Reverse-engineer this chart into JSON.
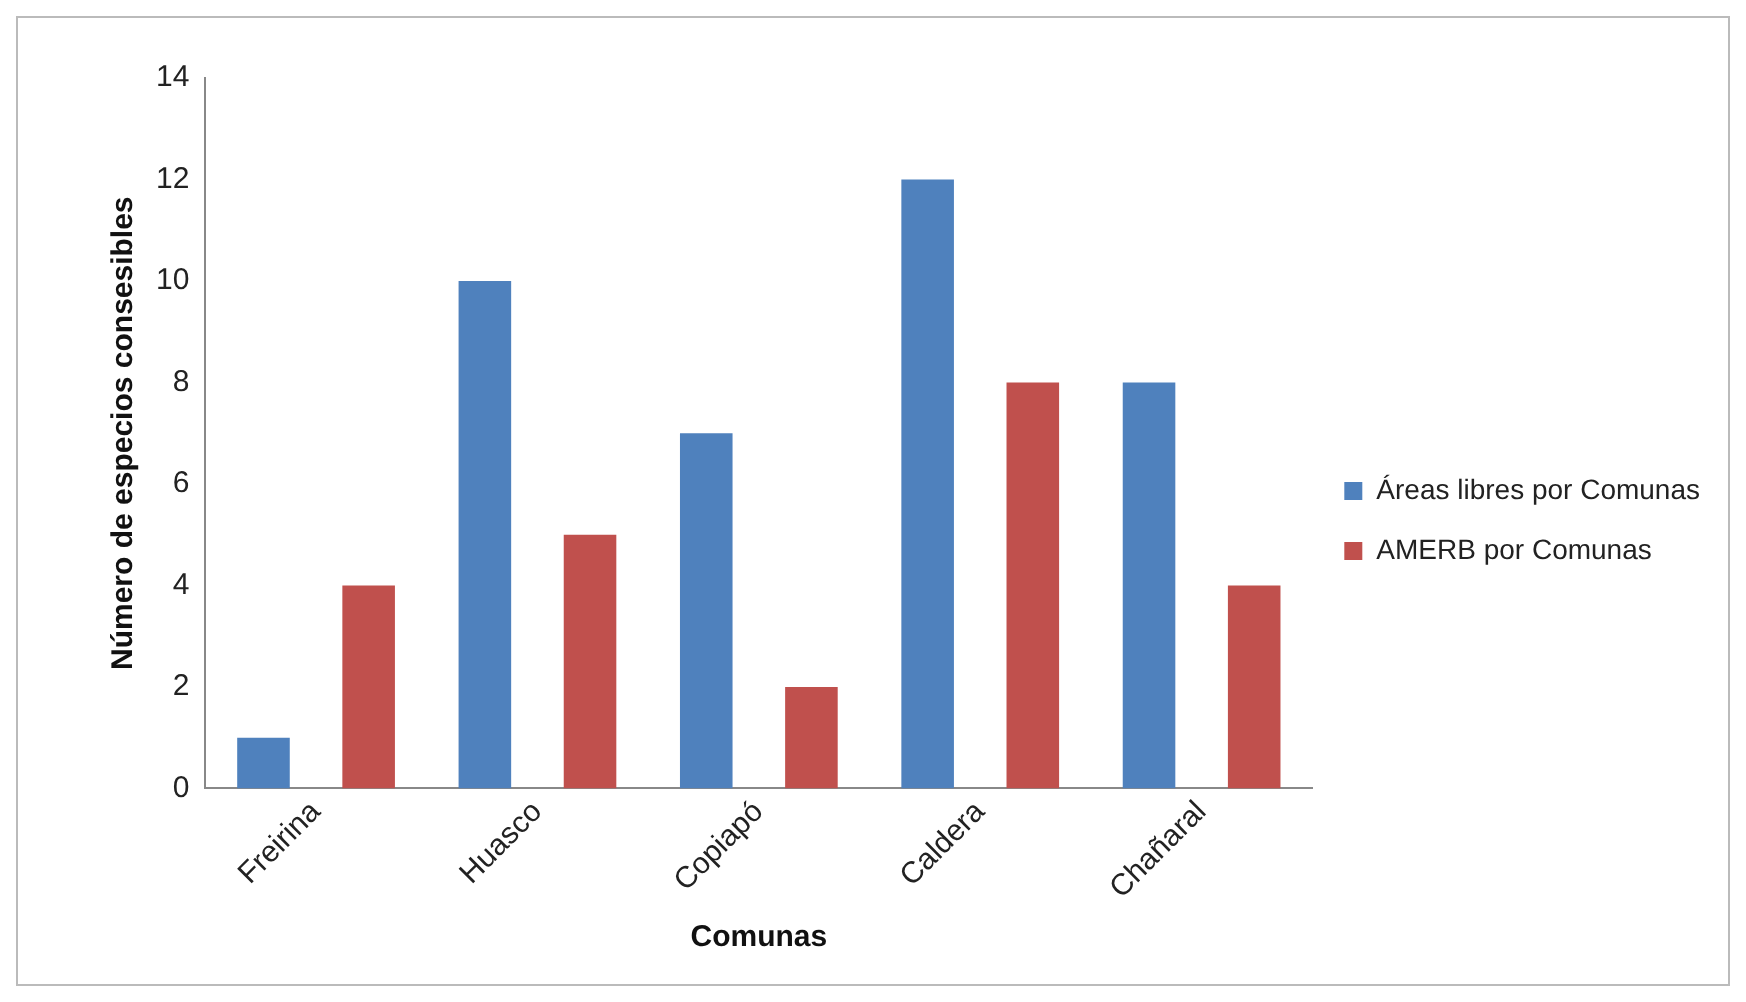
{
  "chart_data": {
    "type": "bar",
    "xlabel": "Comunas",
    "ylabel": "Número de especios consesibles",
    "categories": [
      "Freirina",
      "Huasco",
      "Copiapó",
      "Caldera",
      "Chañaral"
    ],
    "series": [
      {
        "name": "Áreas libres por Comunas",
        "color": "#4f81bd",
        "values": [
          1,
          10,
          7,
          12,
          8
        ]
      },
      {
        "name": "AMERB por Comunas",
        "color": "#c0504d",
        "values": [
          4,
          5,
          2,
          8,
          4
        ]
      }
    ],
    "ylim": [
      0,
      14
    ],
    "yticks": [
      0,
      2,
      4,
      6,
      8,
      10,
      12,
      14
    ],
    "grid": false,
    "legend": "right"
  }
}
